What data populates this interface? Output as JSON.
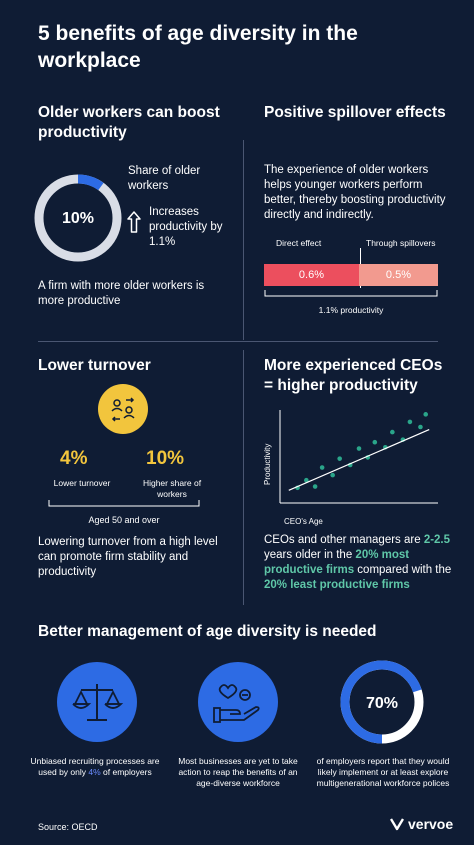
{
  "header": {
    "title": "5 benefits of age diversity in the workplace"
  },
  "s1": {
    "title": "Older workers can boost productivity",
    "donut_value": "10%",
    "donut_fraction": 0.1,
    "share_label": "Share of older workers",
    "increase_label": "Increases productivity by 1.1%",
    "body": "A firm with more older workers is more productive"
  },
  "s2": {
    "title": "Positive spillover effects",
    "body": "The experience of older workers helps younger workers perform better, thereby boosting productivity directly and indirectly.",
    "direct_label": "Direct effect",
    "spill_label": "Through spillovers",
    "direct_value": "0.6%",
    "spill_value": "0.5%",
    "total_label": "1.1% productivity"
  },
  "s3": {
    "title": "Lower turnover",
    "left_value": "4%",
    "left_label": "Lower turnover",
    "right_value": "10%",
    "right_label": "Higher share of workers",
    "group_label": "Aged 50 and over",
    "body": "Lowering turnover from a high level can promote firm stability and productivity"
  },
  "s4": {
    "title": "More experienced CEOs = higher productivity",
    "y_label": "Productivity",
    "x_label": "CEO's Age",
    "body_1": "CEOs and other managers are ",
    "body_2": "2-2.5",
    "body_3": " years older in the ",
    "body_4": "20% most productive firms",
    "body_5": " compared with the ",
    "body_6": "20% least productive firms"
  },
  "s5": {
    "title": "Better management of age diversity is needed",
    "col1_a": "Unbiased recruiting processes are used by only ",
    "col1_b": "4%",
    "col1_c": " of employers",
    "col2": "Most businesses are yet to take action to reap the benefits of an age-diverse workforce",
    "col3_value": "70%",
    "col3_fraction": 0.7,
    "col3_text": "of employers report that they would likely implement or at least explore multigenerational workforce polices"
  },
  "footer": {
    "source": "Source: OECD",
    "brand": "vervoe"
  },
  "chart_data": {
    "type": "scatter",
    "xlabel": "CEO's Age",
    "ylabel": "Productivity",
    "points": [
      [
        1,
        1.2
      ],
      [
        1.5,
        1.8
      ],
      [
        2,
        1.3
      ],
      [
        2.4,
        2.8
      ],
      [
        3,
        2.2
      ],
      [
        3.4,
        3.5
      ],
      [
        4,
        3.0
      ],
      [
        4.5,
        4.3
      ],
      [
        5,
        3.6
      ],
      [
        5.4,
        4.8
      ],
      [
        6,
        4.4
      ],
      [
        6.4,
        5.6
      ],
      [
        7,
        5.0
      ],
      [
        7.4,
        6.4
      ],
      [
        8,
        6.0
      ],
      [
        8.3,
        7.0
      ]
    ],
    "trend": [
      [
        0.5,
        1.0
      ],
      [
        8.5,
        5.8
      ]
    ],
    "colors": {
      "points": "#2aa58a",
      "trend": "#ffffff"
    }
  },
  "colors": {
    "background": "#0f1c34",
    "accent_blue": "#2d6be4",
    "bar_direct": "#ec4f5e",
    "bar_spill": "#f29a8f",
    "yellow": "#f2c53d",
    "green": "#5fc7a8"
  },
  "icons": [
    "up-arrow-icon",
    "people-swap-icon",
    "scales-icon",
    "hand-heart-icon",
    "vervoe-logo-icon"
  ]
}
